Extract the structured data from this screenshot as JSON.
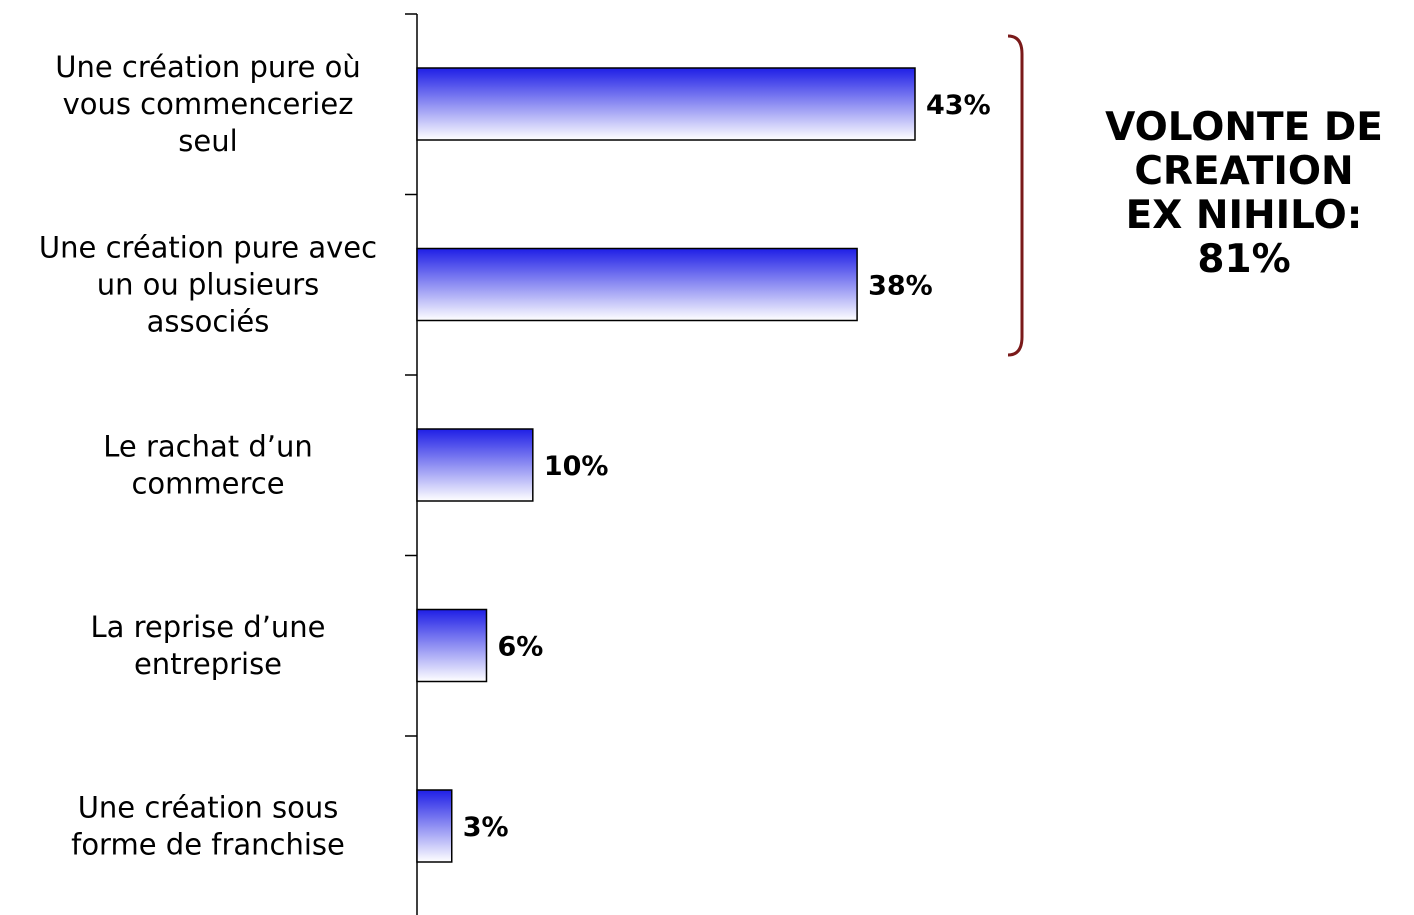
{
  "chart_data": {
    "type": "bar",
    "orientation": "horizontal",
    "categories": [
      [
        "Une création pure où",
        "vous commenceriez",
        "seul"
      ],
      [
        "Une création pure avec",
        "un ou plusieurs",
        "associés"
      ],
      [
        "Le rachat d’un",
        "commerce"
      ],
      [
        "La reprise d’une",
        "entreprise"
      ],
      [
        "Une création sous",
        "forme de franchise"
      ]
    ],
    "values": [
      43,
      38,
      10,
      6,
      3
    ],
    "value_labels": [
      "43%",
      "38%",
      "10%",
      "6%",
      "3%"
    ],
    "xlim": [
      0,
      100
    ],
    "grid": false,
    "bar_gradient": {
      "top": "#1f1fe6",
      "bottom": "#ffffff"
    },
    "bracket": {
      "spans_categories": [
        0,
        1
      ],
      "color": "#7a1a1a"
    },
    "annotation": [
      "VOLONTE DE",
      "CREATION",
      "EX NIHILO:",
      "81%"
    ]
  }
}
